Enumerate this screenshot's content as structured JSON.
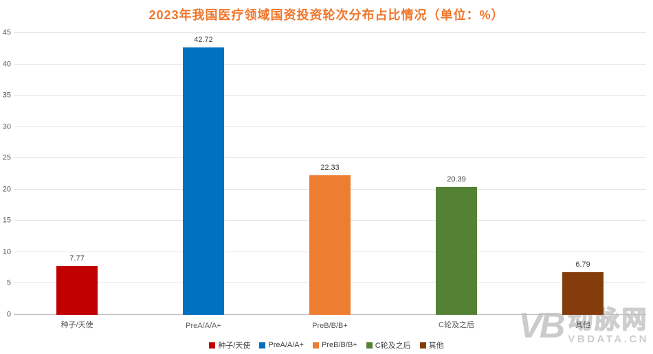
{
  "chart_data": {
    "type": "bar",
    "title": "2023年我国医疗领域国资投资轮次分布占比情况（单位：%）",
    "title_color": "#f0762b",
    "categories": [
      "种子/天使",
      "PreA/A/A+",
      "PreB/B/B+",
      "C轮及之后",
      "其他"
    ],
    "values": [
      7.77,
      42.72,
      22.33,
      20.39,
      6.79
    ],
    "value_labels": [
      "7.77",
      "42.72",
      "22.33",
      "20.39",
      "6.79"
    ],
    "bar_colors": [
      "#c00000",
      "#0070c0",
      "#ed7d31",
      "#548235",
      "#843c0c"
    ],
    "ylim": [
      0,
      45
    ],
    "yticks": [
      0,
      5,
      10,
      15,
      20,
      25,
      30,
      35,
      40,
      45
    ],
    "grid": true,
    "legend_position": "bottom",
    "legend": [
      "种子/天使",
      "PreA/A/A+",
      "PreB/B/B+",
      "C轮及之后",
      "其他"
    ]
  },
  "watermark": {
    "logo_text": "VB",
    "name": "动脉网",
    "domain": "VBDATA.CN"
  }
}
